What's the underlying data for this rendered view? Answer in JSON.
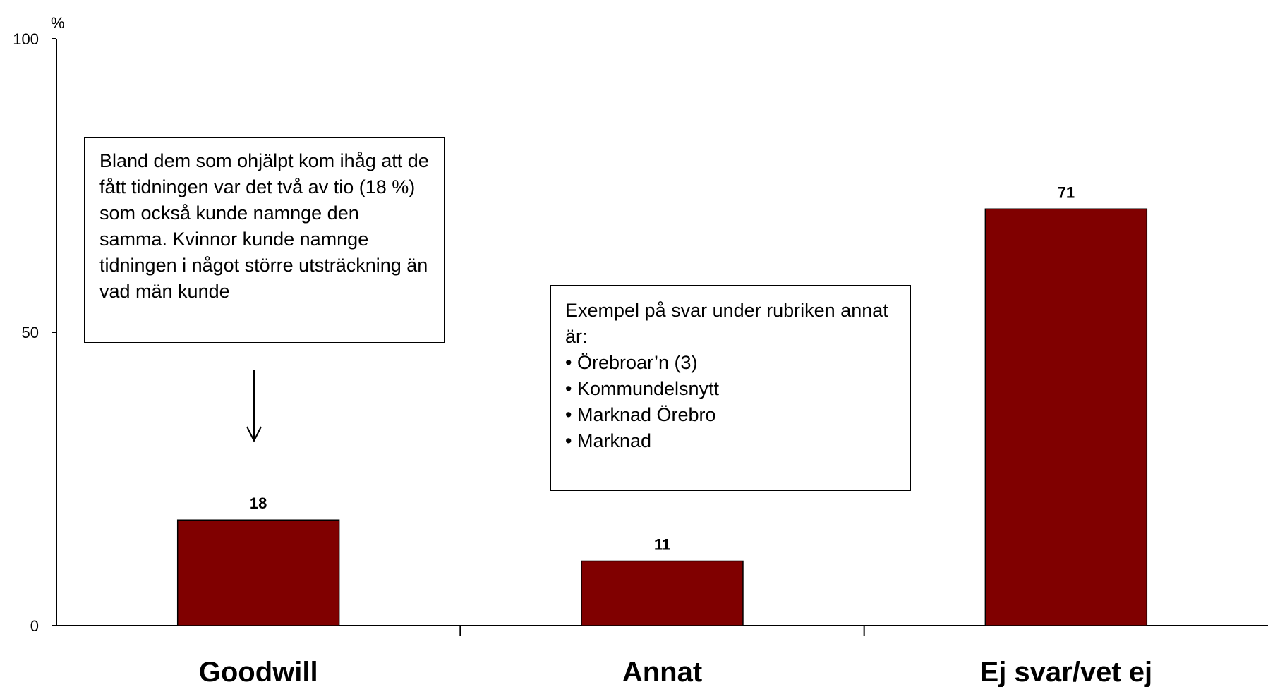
{
  "chart_data": {
    "type": "bar",
    "categories": [
      "Goodwill",
      "Annat",
      "Ej svar/vet ej"
    ],
    "values": [
      18,
      11,
      71
    ],
    "value_labels": [
      "18",
      "11",
      "71"
    ],
    "ylim": [
      0,
      100
    ],
    "yticks": [
      "0",
      "50",
      "100"
    ],
    "ylabel": "%",
    "bar_color": "#800000",
    "grid": false,
    "legend": false
  },
  "annotations": {
    "goodwill_note": "Bland dem som ohjälpt kom ihåg att de fått tidningen var det två av tio (18 %) som också kunde namnge den samma. Kvinnor kunde namnge tidningen i något större utsträckning än vad män kunde",
    "annat_note": {
      "intro": "Exempel på svar under rubriken annat är:",
      "items": [
        "Örebroar’n (3)",
        "Kommundelsnytt",
        "Marknad Örebro",
        "Marknad"
      ]
    }
  }
}
